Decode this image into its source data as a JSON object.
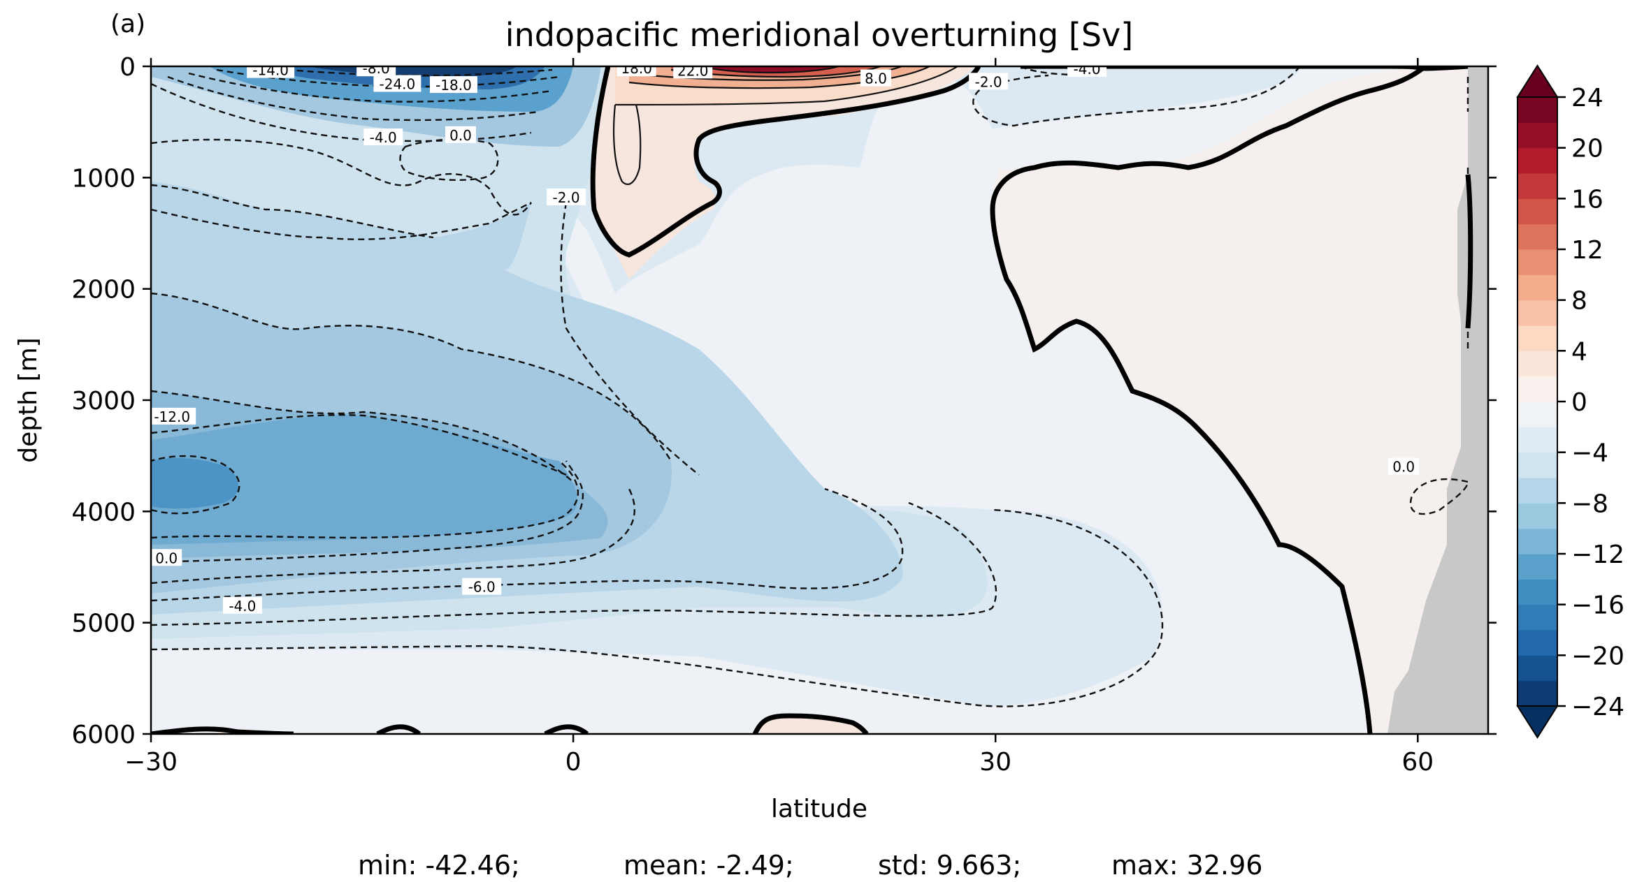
{
  "panel_label": "(a)",
  "chart_data": {
    "type": "heatmap",
    "subtype": "filled-contour",
    "title": "indopacific meridional overturning [Sv]",
    "xlabel": "latitude",
    "ylabel": "depth [m]",
    "xlim": [
      -30,
      65
    ],
    "ylim": [
      6000,
      0
    ],
    "y_inverted": true,
    "xticks": [
      -30,
      0,
      30,
      60
    ],
    "xtick_labels": [
      "−30",
      "0",
      "30",
      "60"
    ],
    "yticks": [
      0,
      1000,
      2000,
      3000,
      4000,
      5000,
      6000
    ],
    "ytick_labels": [
      "0",
      "1000",
      "2000",
      "3000",
      "4000",
      "5000",
      "6000"
    ],
    "grid": false,
    "colormap": "RdBu_r",
    "colorbar": {
      "levels_min": -24,
      "levels_max": 24,
      "level_step": 2,
      "extend": "both",
      "ticks": [
        24,
        20,
        16,
        12,
        8,
        4,
        0,
        -4,
        -8,
        -12,
        -16,
        -20,
        -24
      ],
      "tick_labels": [
        "24",
        "20",
        "16",
        "12",
        "8",
        "4",
        "0",
        "−4",
        "−8",
        "−12",
        "−16",
        "−20",
        "−24"
      ]
    },
    "contour_labels": [
      {
        "text": "-12.0",
        "lat": -28.5,
        "depth": 3150
      },
      {
        "text": "0.0",
        "lat": -28.9,
        "depth": 4420
      },
      {
        "text": "-4.0",
        "lat": -23.5,
        "depth": 4850
      },
      {
        "text": "-6.0",
        "lat": -6.5,
        "depth": 4680
      },
      {
        "text": "-4.0",
        "lat": -13.5,
        "depth": 640
      },
      {
        "text": "0.0",
        "lat": -8.0,
        "depth": 620
      },
      {
        "text": "-2.0",
        "lat": -0.5,
        "depth": 1180
      },
      {
        "text": "-24.0",
        "lat": -12.5,
        "depth": 160
      },
      {
        "text": "-18.0",
        "lat": -8.5,
        "depth": 170
      },
      {
        "text": "-14.0",
        "lat": -21.5,
        "depth": 35
      },
      {
        "text": "-8.0",
        "lat": -14.0,
        "depth": 20
      },
      {
        "text": "18.0",
        "lat": 4.5,
        "depth": 20
      },
      {
        "text": "22.0",
        "lat": 8.5,
        "depth": 40
      },
      {
        "text": "8.0",
        "lat": 21.5,
        "depth": 110
      },
      {
        "text": "-2.0",
        "lat": 29.5,
        "depth": 140
      },
      {
        "text": "-4.0",
        "lat": 36.5,
        "depth": 25
      },
      {
        "text": "0.0",
        "lat": 59.0,
        "depth": 3600
      }
    ],
    "stats": {
      "min": "min: -42.46;",
      "mean": "mean: -2.49;",
      "std": "std: 9.663;",
      "max": "max: 32.96"
    },
    "colors": {
      "deep_blue": "#143d70",
      "mid_blue": "#5aa2cd",
      "light_blue": "#cfe4f0",
      "near_zero": "#eef1f5",
      "light_red": "#f6e6dd",
      "dark_red": "#8c0d25",
      "land_gray": "#c8c8c8"
    }
  }
}
